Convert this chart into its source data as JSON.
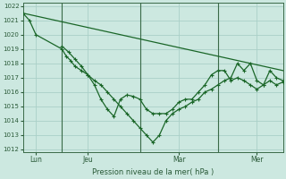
{
  "bg_color": "#cce8e0",
  "grid_color": "#aad0c8",
  "line_color": "#1a6628",
  "title": "Pression niveau de la mer( hPa )",
  "ylim": [
    1012,
    1022
  ],
  "yticks": [
    1012,
    1013,
    1014,
    1015,
    1016,
    1017,
    1018,
    1019,
    1020,
    1021,
    1022
  ],
  "xlim": [
    0,
    240
  ],
  "xtick_positions": [
    12,
    60,
    144,
    216
  ],
  "xtick_labels": [
    "Lun",
    "Jeu",
    "Mar",
    "Mer"
  ],
  "vline_positions": [
    36,
    108,
    180
  ],
  "smooth_line": {
    "x": [
      0,
      240
    ],
    "y": [
      1021.5,
      1017.5
    ]
  },
  "line1_x": [
    0,
    6,
    12,
    36,
    40,
    44,
    48,
    54,
    60,
    66,
    72,
    78,
    84,
    90,
    96,
    102,
    108,
    114,
    120,
    126,
    132,
    138,
    144,
    150,
    156,
    162,
    168,
    174,
    180,
    186,
    192,
    198,
    204,
    210,
    216,
    222,
    228,
    234,
    240
  ],
  "line1_y": [
    1021.5,
    1021.0,
    1020.0,
    1019.0,
    1018.5,
    1018.2,
    1017.8,
    1017.5,
    1017.2,
    1016.8,
    1016.5,
    1016.0,
    1015.5,
    1015.0,
    1014.5,
    1014.0,
    1013.5,
    1013.0,
    1012.5,
    1013.0,
    1014.0,
    1014.5,
    1014.8,
    1015.0,
    1015.3,
    1015.5,
    1016.0,
    1016.2,
    1016.5,
    1016.8,
    1017.0,
    1018.0,
    1017.5,
    1018.0,
    1016.8,
    1016.5,
    1016.8,
    1016.5,
    1016.7
  ],
  "line2_x": [
    36,
    42,
    48,
    54,
    60,
    66,
    72,
    78,
    84,
    90,
    96,
    102,
    108,
    114,
    120,
    126,
    132,
    138,
    144,
    150,
    156,
    162,
    168,
    174,
    180,
    186,
    192,
    198,
    204,
    210,
    216,
    222,
    228,
    234,
    240
  ],
  "line2_y": [
    1019.2,
    1018.8,
    1018.3,
    1017.8,
    1017.2,
    1016.5,
    1015.5,
    1014.8,
    1014.3,
    1015.5,
    1015.8,
    1015.7,
    1015.5,
    1014.8,
    1014.5,
    1014.5,
    1014.5,
    1014.8,
    1015.3,
    1015.5,
    1015.5,
    1016.0,
    1016.5,
    1017.2,
    1017.5,
    1017.5,
    1016.8,
    1017.0,
    1016.8,
    1016.5,
    1016.2,
    1016.5,
    1017.5,
    1017.0,
    1016.8
  ]
}
